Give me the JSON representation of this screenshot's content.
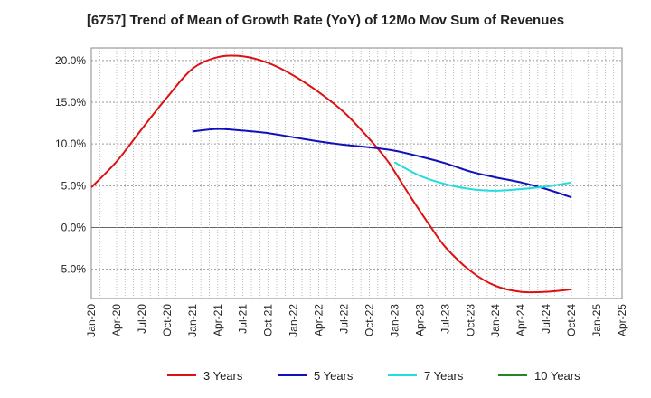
{
  "chart_data": {
    "type": "line",
    "title": "[6757]  Trend of Mean of Growth Rate (YoY) of 12Mo Mov Sum of Revenues",
    "xlabel": "",
    "ylabel": "",
    "ylim": [
      -8.5,
      21.5
    ],
    "y_ticks": [
      20.0,
      15.0,
      10.0,
      5.0,
      0.0,
      -5.0
    ],
    "y_tick_labels": [
      "20.0%",
      "15.0%",
      "10.0%",
      "5.0%",
      "0.0%",
      "-5.0%"
    ],
    "x_range_months": [
      0,
      63
    ],
    "x_tick_months": [
      0,
      3,
      6,
      9,
      12,
      15,
      18,
      21,
      24,
      27,
      30,
      33,
      36,
      39,
      42,
      45,
      48,
      51,
      54,
      57,
      60,
      63
    ],
    "x_tick_labels": [
      "Jan-20",
      "Apr-20",
      "Jul-20",
      "Oct-20",
      "Jan-21",
      "Apr-21",
      "Jul-21",
      "Oct-21",
      "Jan-22",
      "Apr-22",
      "Jul-22",
      "Oct-22",
      "Jan-23",
      "Apr-23",
      "Jul-23",
      "Oct-23",
      "Jan-24",
      "Apr-24",
      "Jul-24",
      "Oct-24",
      "Jan-25",
      "Apr-25"
    ],
    "grid": true,
    "legend_position": "bottom",
    "series": [
      {
        "name": "3 Years",
        "color": "#dd1111",
        "points": [
          [
            0,
            4.8
          ],
          [
            3,
            7.9
          ],
          [
            6,
            11.8
          ],
          [
            9,
            15.6
          ],
          [
            12,
            19.0
          ],
          [
            15,
            20.4
          ],
          [
            18,
            20.5
          ],
          [
            21,
            19.7
          ],
          [
            24,
            18.2
          ],
          [
            27,
            16.2
          ],
          [
            30,
            13.8
          ],
          [
            33,
            10.6
          ],
          [
            35,
            8.2
          ],
          [
            36,
            6.7
          ],
          [
            38,
            3.5
          ],
          [
            40,
            0.5
          ],
          [
            42,
            -2.3
          ],
          [
            45,
            -5.2
          ],
          [
            48,
            -7.0
          ],
          [
            51,
            -7.7
          ],
          [
            54,
            -7.7
          ],
          [
            57,
            -7.4
          ]
        ]
      },
      {
        "name": "5 Years",
        "color": "#1111bb",
        "points": [
          [
            12,
            11.5
          ],
          [
            15,
            11.8
          ],
          [
            18,
            11.6
          ],
          [
            21,
            11.3
          ],
          [
            24,
            10.8
          ],
          [
            27,
            10.3
          ],
          [
            30,
            9.9
          ],
          [
            33,
            9.6
          ],
          [
            36,
            9.2
          ],
          [
            39,
            8.5
          ],
          [
            42,
            7.7
          ],
          [
            45,
            6.7
          ],
          [
            48,
            6.0
          ],
          [
            51,
            5.4
          ],
          [
            54,
            4.6
          ],
          [
            57,
            3.6
          ]
        ]
      },
      {
        "name": "7 Years",
        "color": "#22dddd",
        "points": [
          [
            36,
            7.8
          ],
          [
            39,
            6.2
          ],
          [
            42,
            5.2
          ],
          [
            45,
            4.6
          ],
          [
            48,
            4.4
          ],
          [
            51,
            4.6
          ],
          [
            54,
            4.9
          ],
          [
            57,
            5.4
          ]
        ]
      },
      {
        "name": "10 Years",
        "color": "#228822",
        "points": []
      }
    ]
  }
}
